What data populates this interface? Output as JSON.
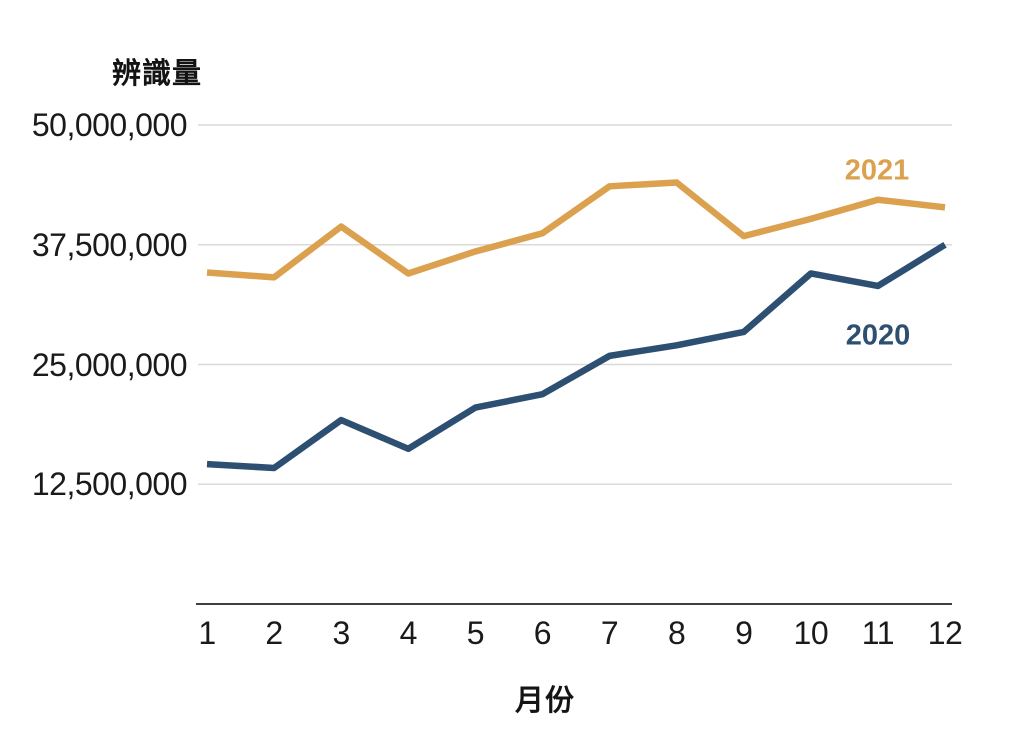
{
  "chart_data": {
    "type": "line",
    "title": "",
    "ylabel": "辨識量",
    "xlabel": "月份",
    "categories": [
      "1",
      "2",
      "3",
      "4",
      "5",
      "6",
      "7",
      "8",
      "9",
      "10",
      "11",
      "12"
    ],
    "ylim": [
      0,
      50000000
    ],
    "grid": "horizontal",
    "legend": "inline-labels-near-lines",
    "yticks": [
      {
        "value": 50000000,
        "label": "50,000,000"
      },
      {
        "value": 37500000,
        "label": "37,500,000"
      },
      {
        "value": 25000000,
        "label": "25,000,000"
      },
      {
        "value": 12500000,
        "label": "12,500,000"
      }
    ],
    "series": [
      {
        "name": "2021",
        "color": "#DCA14F",
        "values": [
          34600000,
          34100000,
          39400000,
          34500000,
          36800000,
          38700000,
          43600000,
          44000000,
          38400000,
          40200000,
          42200000,
          41400000
        ]
      },
      {
        "name": "2020",
        "color": "#2C4F72",
        "values": [
          14600000,
          14200000,
          19200000,
          16200000,
          20500000,
          21900000,
          25900000,
          27000000,
          28400000,
          34500000,
          33200000,
          37500000
        ]
      }
    ],
    "colors": {
      "gridline": "#DADADA",
      "axis_line": "#3F3F3F",
      "tick_text": "#1a1a1a"
    }
  }
}
